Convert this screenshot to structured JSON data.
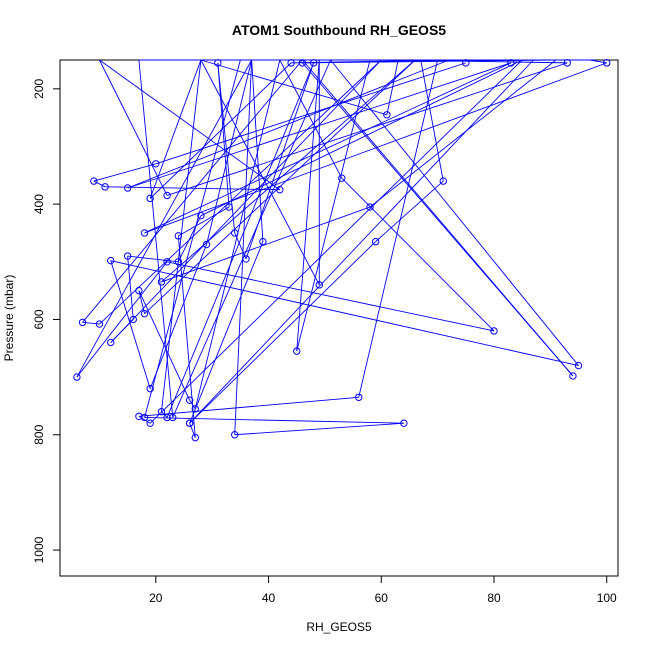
{
  "chart_data": {
    "type": "line",
    "title": "ATOM1 Southbound RH_GEOS5",
    "xlabel": "RH_GEOS5",
    "ylabel": "Pressure (mbar)",
    "xlim": [
      3,
      102
    ],
    "ylim": [
      1045,
      150
    ],
    "y_reversed": true,
    "x_ticks": [
      20,
      40,
      60,
      80,
      100
    ],
    "y_ticks": [
      200,
      400,
      600,
      800,
      1000
    ],
    "grid": false,
    "legend": "none",
    "series_color": "#0000ff",
    "marker": "open-circle",
    "series": [
      {
        "x": [
          75,
          20,
          9,
          11,
          42,
          10,
          22,
          93,
          63,
          61,
          28,
          19,
          44,
          72,
          15,
          83,
          18,
          100,
          97,
          67,
          96,
          85,
          28,
          24,
          15,
          16,
          12,
          60,
          10,
          7,
          46,
          94,
          46,
          91,
          58,
          21,
          66,
          18,
          17,
          26,
          27,
          42,
          53,
          80,
          22,
          6,
          37,
          39,
          26,
          27,
          24,
          33,
          31,
          34,
          36,
          48,
          22,
          21,
          28,
          49,
          49,
          45,
          58,
          70,
          56,
          17,
          19,
          85,
          17,
          23,
          51,
          95,
          12,
          19,
          29,
          37,
          43,
          87,
          26,
          59,
          71,
          67,
          31,
          82,
          27,
          35,
          18,
          64,
          34,
          37,
          47,
          41,
          21,
          23,
          81,
          62,
          74,
          80,
          78,
          85,
          78,
          74,
          53,
          48,
          92,
          69,
          66,
          92,
          82,
          35,
          57,
          77,
          29,
          30,
          76,
          77,
          80,
          63,
          88,
          78,
          65,
          59,
          20,
          66,
          66,
          73,
          65,
          68,
          75,
          76,
          71,
          60,
          98
        ],
        "y": [
          155,
          330,
          360,
          370,
          375,
          150,
          385,
          155,
          150,
          245,
          150,
          390,
          155,
          150,
          372,
          155,
          450,
          155,
          150,
          150,
          150,
          150,
          420,
          500,
          490,
          600,
          640,
          150,
          608,
          605,
          150,
          698,
          155,
          150,
          405,
          535,
          150,
          590,
          550,
          740,
          755,
          150,
          355,
          620,
          500,
          700,
          150,
          465,
          780,
          805,
          455,
          405,
          155,
          450,
          495,
          155,
          770,
          760,
          150,
          540,
          150,
          655,
          150,
          150,
          735,
          768,
          780,
          150,
          150,
          770,
          150,
          680,
          498,
          720,
          470,
          150,
          150,
          150,
          780,
          465,
          360,
          150,
          150,
          150,
          150,
          150,
          770,
          780,
          800,
          150,
          150,
          150,
          150,
          150,
          150,
          150,
          150,
          150,
          150,
          150,
          150,
          150,
          150,
          150,
          150,
          150,
          150,
          150,
          150,
          150,
          150,
          150,
          150,
          150,
          150,
          150,
          150,
          150,
          150,
          150,
          150,
          150,
          150,
          150,
          150,
          150,
          150,
          150,
          150,
          150,
          150,
          150,
          150
        ]
      }
    ]
  }
}
